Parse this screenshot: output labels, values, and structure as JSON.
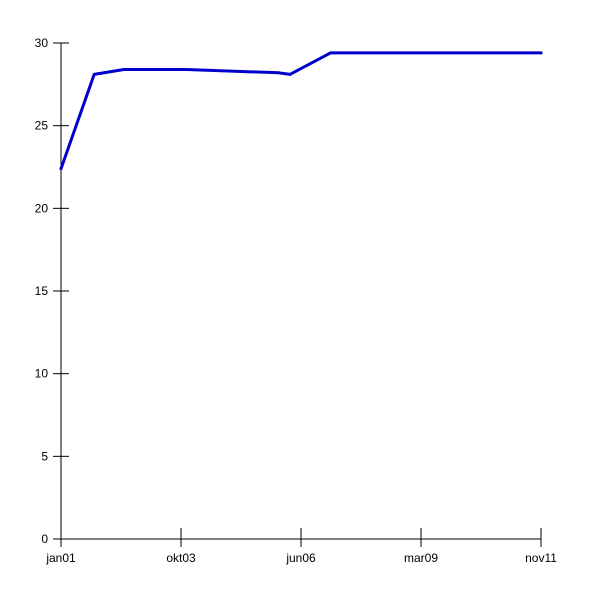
{
  "chart_data": {
    "type": "line",
    "title": "",
    "xlabel": "",
    "ylabel": "",
    "x_tick_labels": [
      "jan01",
      "okt03",
      "jun06",
      "mar09",
      "nov11"
    ],
    "y_tick_labels": [
      "0",
      "5",
      "10",
      "15",
      "20",
      "25",
      "30"
    ],
    "xlim": [
      "2001-01",
      "2011-11"
    ],
    "ylim": [
      0,
      30
    ],
    "grid": false,
    "legend": "none",
    "series": [
      {
        "color": "#0000cc",
        "points": [
          {
            "x": "2001-01",
            "y": 22.4
          },
          {
            "x": "2001-10",
            "y": 28.1
          },
          {
            "x": "2002-06",
            "y": 28.4
          },
          {
            "x": "2003-11",
            "y": 28.4
          },
          {
            "x": "2005-12",
            "y": 28.2
          },
          {
            "x": "2006-03",
            "y": 28.1
          },
          {
            "x": "2007-02",
            "y": 29.4
          },
          {
            "x": "2011-11",
            "y": 29.4
          }
        ]
      }
    ]
  }
}
